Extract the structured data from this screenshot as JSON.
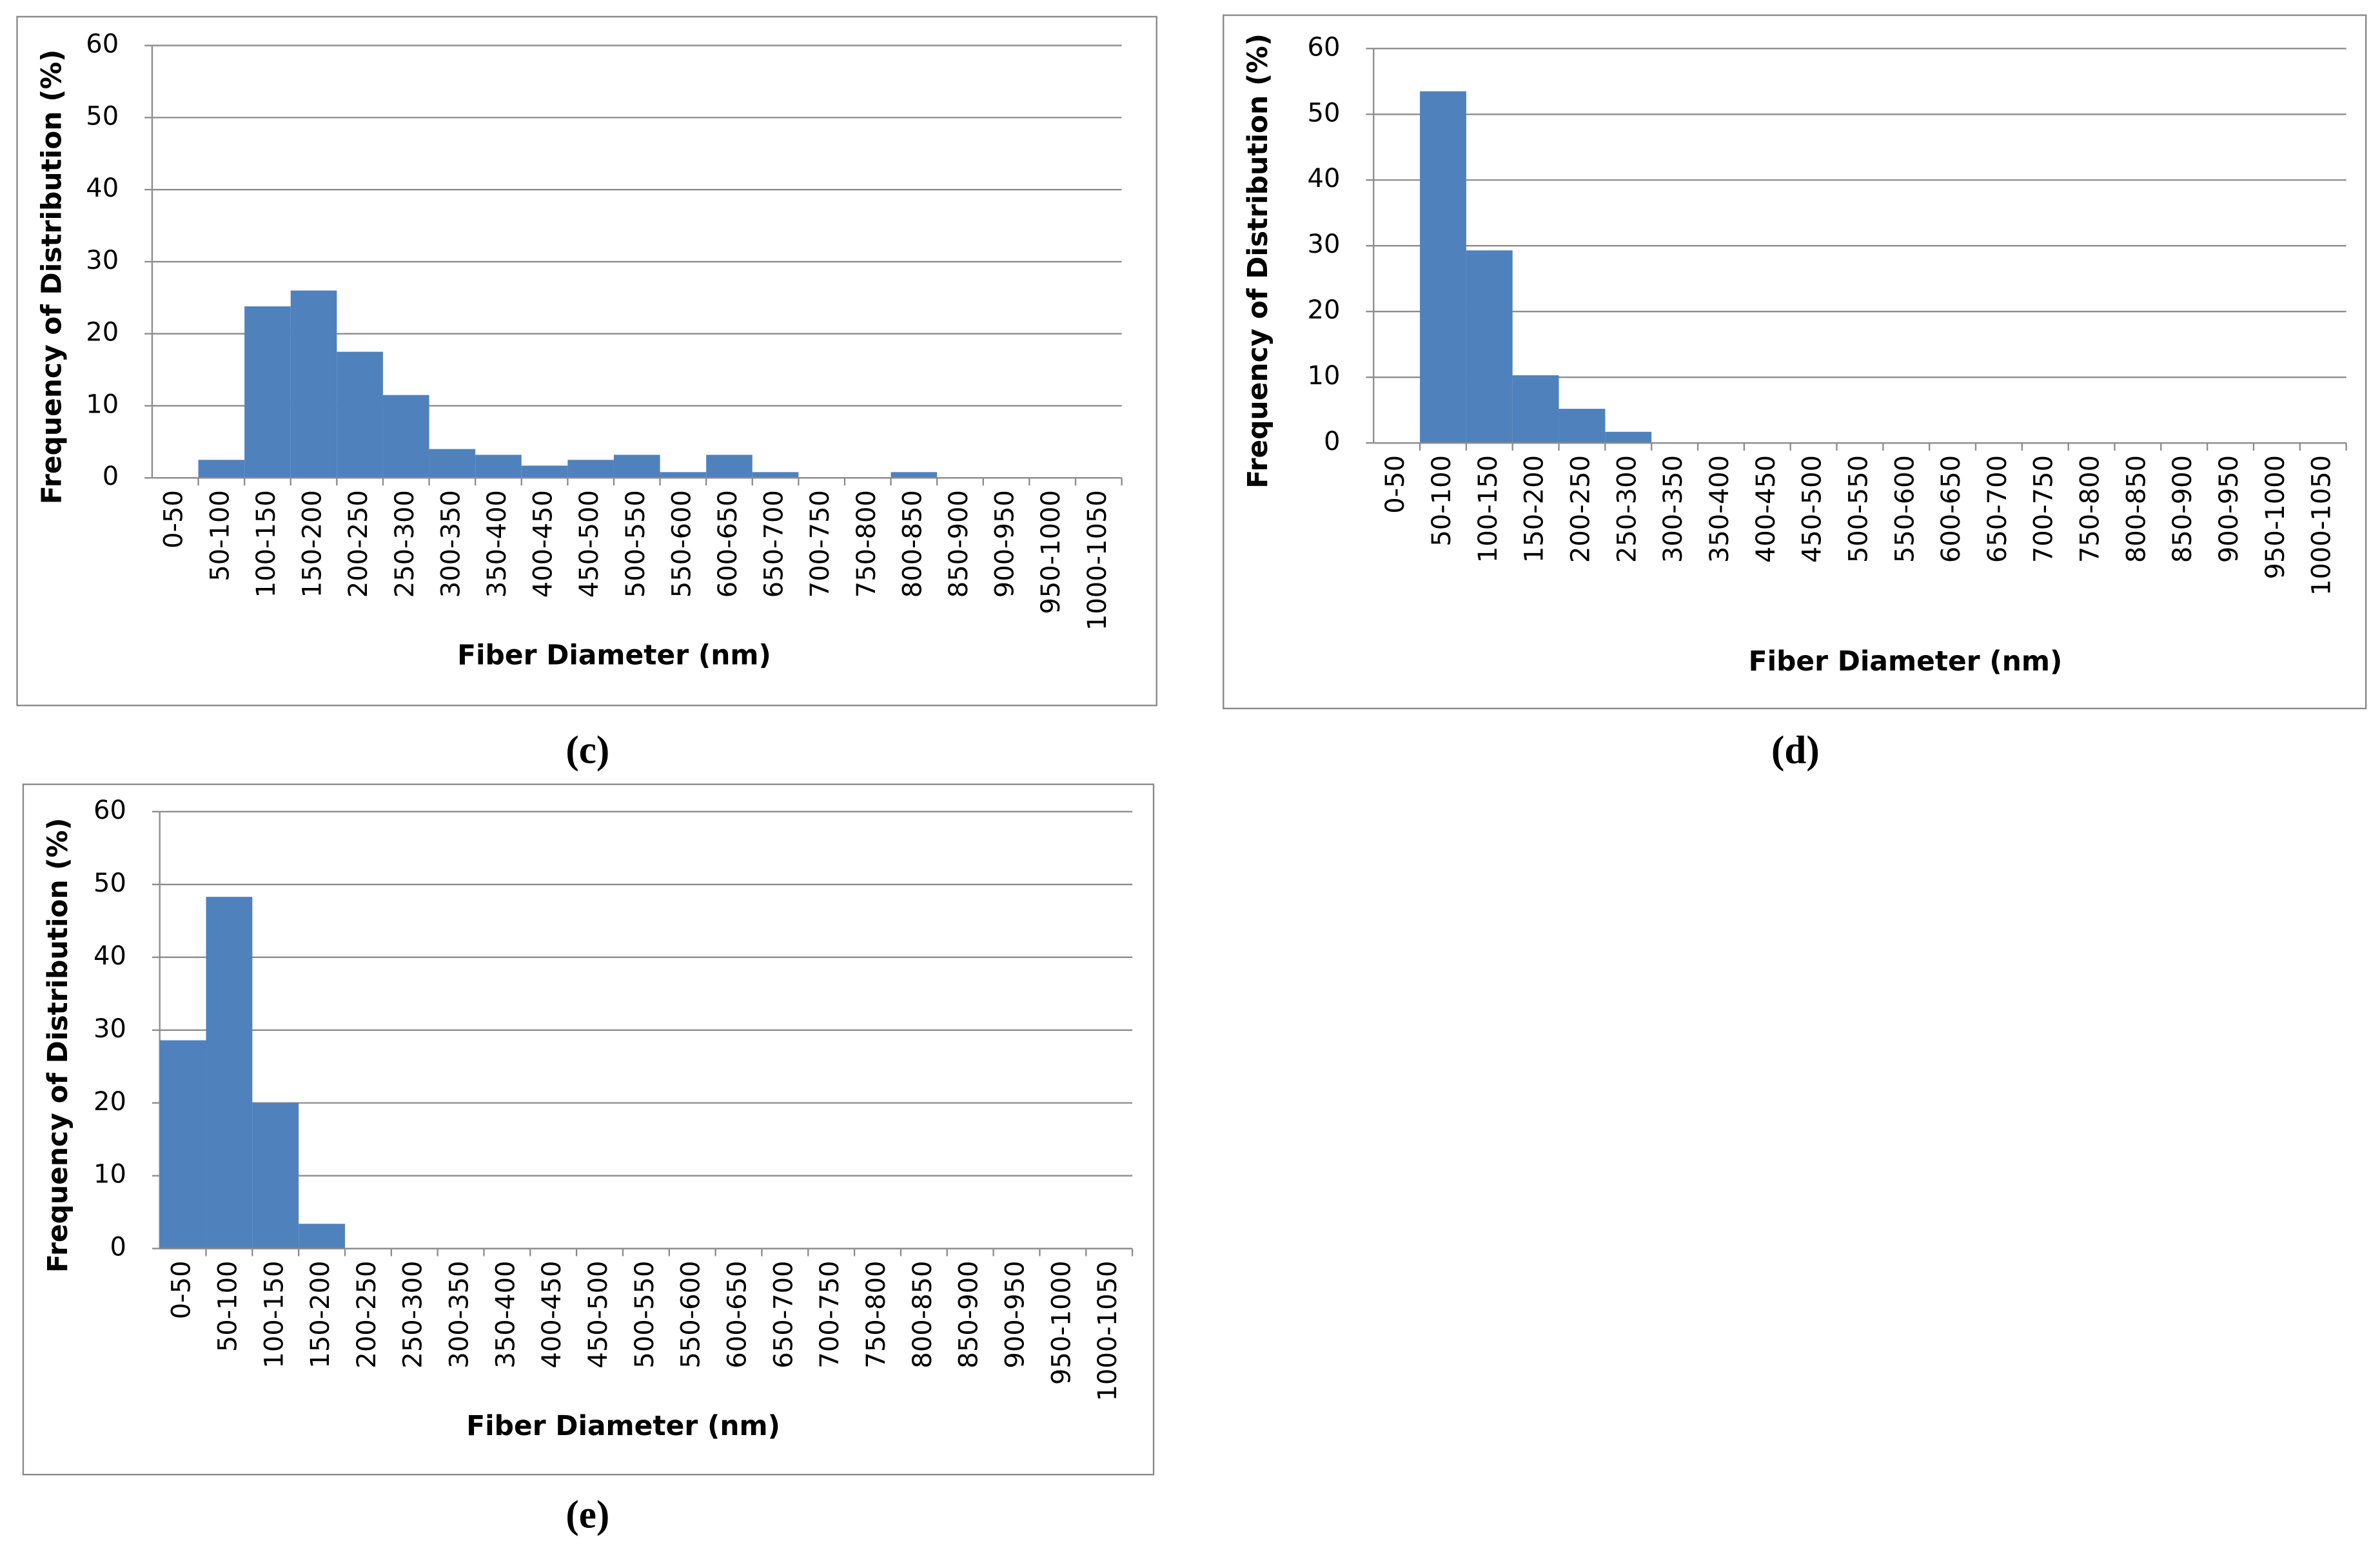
{
  "chart_data": [
    {
      "type": "bar",
      "caption": "(c)",
      "x_label": "Fiber Diameter (nm)",
      "y_label": "Frequency of Distribution (%)",
      "categories": [
        "0-50",
        "50-100",
        "100-150",
        "150-200",
        "200-250",
        "250-300",
        "300-350",
        "350-400",
        "400-450",
        "450-500",
        "500-550",
        "550-600",
        "600-650",
        "650-700",
        "700-750",
        "750-800",
        "800-850",
        "850-900",
        "900-950",
        "950-1000",
        "1000-1050"
      ],
      "values": [
        0,
        2.5,
        23.8,
        26,
        17.5,
        11.5,
        4,
        3.2,
        1.7,
        2.5,
        3.2,
        0.8,
        3.2,
        0.8,
        0,
        0,
        0.8,
        0,
        0,
        0,
        0
      ],
      "color": "#4f81bd",
      "ylim": [
        0,
        60
      ],
      "yticks": [
        0,
        10,
        20,
        30,
        40,
        50,
        60
      ],
      "grid": true
    },
    {
      "type": "bar",
      "caption": "(d)",
      "x_label": "Fiber Diameter (nm)",
      "y_label": "Frequency of Distribution (%)",
      "categories": [
        "0-50",
        "50-100",
        "100-150",
        "150-200",
        "200-250",
        "250-300",
        "300-350",
        "350-400",
        "400-450",
        "450-500",
        "500-550",
        "550-600",
        "600-650",
        "650-700",
        "700-750",
        "750-800",
        "800-850",
        "850-900",
        "900-950",
        "950-1000",
        "1000-1050"
      ],
      "values": [
        0,
        53.5,
        29.3,
        10.3,
        5.2,
        1.7,
        0,
        0,
        0,
        0,
        0,
        0,
        0,
        0,
        0,
        0,
        0,
        0,
        0,
        0,
        0
      ],
      "color": "#4f81bd",
      "ylim": [
        0,
        60
      ],
      "yticks": [
        0,
        10,
        20,
        30,
        40,
        50,
        60
      ],
      "grid": true
    },
    {
      "type": "bar",
      "caption": "(e)",
      "x_label": "Fiber Diameter (nm)",
      "y_label": "Frequency of Distribution (%)",
      "categories": [
        "0-50",
        "50-100",
        "100-150",
        "150-200",
        "200-250",
        "250-300",
        "300-350",
        "350-400",
        "400-450",
        "450-500",
        "500-550",
        "550-600",
        "600-650",
        "650-700",
        "700-750",
        "750-800",
        "800-850",
        "850-900",
        "900-950",
        "950-1000",
        "1000-1050"
      ],
      "values": [
        28.6,
        48.3,
        20,
        3.4,
        0,
        0,
        0,
        0,
        0,
        0,
        0,
        0,
        0,
        0,
        0,
        0,
        0,
        0,
        0,
        0,
        0
      ],
      "color": "#4f81bd",
      "ylim": [
        0,
        60
      ],
      "yticks": [
        0,
        10,
        20,
        30,
        40,
        50,
        60
      ],
      "grid": true
    }
  ]
}
